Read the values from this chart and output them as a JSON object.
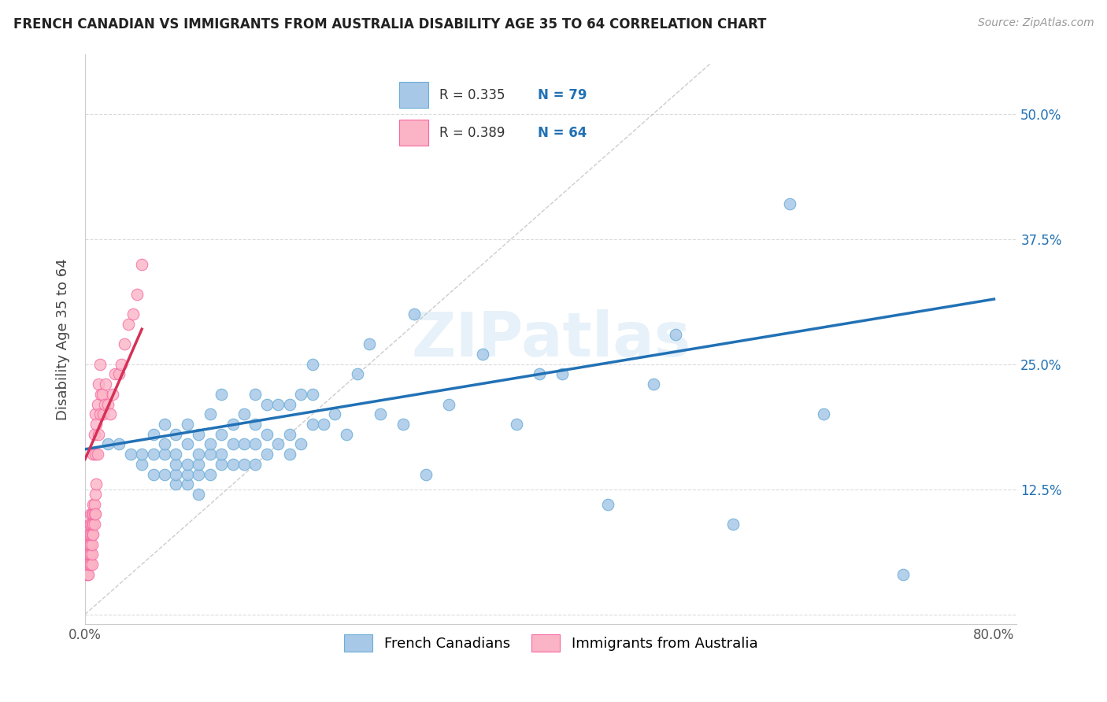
{
  "title": "FRENCH CANADIAN VS IMMIGRANTS FROM AUSTRALIA DISABILITY AGE 35 TO 64 CORRELATION CHART",
  "source": "Source: ZipAtlas.com",
  "ylabel": "Disability Age 35 to 64",
  "xlim": [
    0.0,
    0.82
  ],
  "ylim": [
    -0.01,
    0.56
  ],
  "xticks": [
    0.0,
    0.1,
    0.2,
    0.3,
    0.4,
    0.5,
    0.6,
    0.7,
    0.8
  ],
  "xticklabels": [
    "0.0%",
    "",
    "",
    "",
    "",
    "",
    "",
    "",
    "80.0%"
  ],
  "yticks": [
    0.0,
    0.125,
    0.25,
    0.375,
    0.5
  ],
  "yticklabels_right": [
    "",
    "12.5%",
    "25.0%",
    "37.5%",
    "50.0%"
  ],
  "R_blue": 0.335,
  "N_blue": 79,
  "R_pink": 0.389,
  "N_pink": 64,
  "blue_color": "#a8c8e8",
  "blue_edge_color": "#6baed6",
  "blue_line_color": "#2171b5",
  "pink_color": "#fbb4c6",
  "pink_edge_color": "#f768a1",
  "pink_line_color": "#d63057",
  "watermark": "ZIPatlas",
  "grid_color": "#cccccc",
  "legend_label_blue": "French Canadians",
  "legend_label_pink": "Immigrants from Australia",
  "blue_scatter_x": [
    0.02,
    0.03,
    0.04,
    0.05,
    0.05,
    0.06,
    0.06,
    0.06,
    0.07,
    0.07,
    0.07,
    0.07,
    0.08,
    0.08,
    0.08,
    0.08,
    0.08,
    0.09,
    0.09,
    0.09,
    0.09,
    0.09,
    0.1,
    0.1,
    0.1,
    0.1,
    0.1,
    0.11,
    0.11,
    0.11,
    0.11,
    0.12,
    0.12,
    0.12,
    0.12,
    0.13,
    0.13,
    0.13,
    0.14,
    0.14,
    0.14,
    0.15,
    0.15,
    0.15,
    0.15,
    0.16,
    0.16,
    0.16,
    0.17,
    0.17,
    0.18,
    0.18,
    0.18,
    0.19,
    0.19,
    0.2,
    0.2,
    0.2,
    0.21,
    0.22,
    0.23,
    0.24,
    0.25,
    0.26,
    0.28,
    0.29,
    0.3,
    0.32,
    0.35,
    0.38,
    0.4,
    0.42,
    0.46,
    0.5,
    0.52,
    0.57,
    0.62,
    0.65,
    0.72
  ],
  "blue_scatter_y": [
    0.17,
    0.17,
    0.16,
    0.15,
    0.16,
    0.14,
    0.16,
    0.18,
    0.14,
    0.16,
    0.17,
    0.19,
    0.13,
    0.14,
    0.15,
    0.16,
    0.18,
    0.13,
    0.14,
    0.15,
    0.17,
    0.19,
    0.12,
    0.14,
    0.15,
    0.16,
    0.18,
    0.14,
    0.16,
    0.17,
    0.2,
    0.15,
    0.16,
    0.18,
    0.22,
    0.15,
    0.17,
    0.19,
    0.15,
    0.17,
    0.2,
    0.15,
    0.17,
    0.19,
    0.22,
    0.16,
    0.18,
    0.21,
    0.17,
    0.21,
    0.16,
    0.18,
    0.21,
    0.17,
    0.22,
    0.19,
    0.22,
    0.25,
    0.19,
    0.2,
    0.18,
    0.24,
    0.27,
    0.2,
    0.19,
    0.3,
    0.14,
    0.21,
    0.26,
    0.19,
    0.24,
    0.24,
    0.11,
    0.23,
    0.28,
    0.09,
    0.41,
    0.2,
    0.04
  ],
  "pink_scatter_x": [
    0.001,
    0.001,
    0.002,
    0.002,
    0.002,
    0.003,
    0.003,
    0.003,
    0.003,
    0.003,
    0.004,
    0.004,
    0.004,
    0.004,
    0.004,
    0.005,
    0.005,
    0.005,
    0.005,
    0.005,
    0.005,
    0.006,
    0.006,
    0.006,
    0.006,
    0.006,
    0.006,
    0.007,
    0.007,
    0.007,
    0.007,
    0.007,
    0.008,
    0.008,
    0.008,
    0.008,
    0.009,
    0.009,
    0.009,
    0.009,
    0.01,
    0.01,
    0.011,
    0.011,
    0.012,
    0.012,
    0.013,
    0.013,
    0.014,
    0.015,
    0.016,
    0.017,
    0.018,
    0.02,
    0.022,
    0.024,
    0.026,
    0.03,
    0.032,
    0.035,
    0.038,
    0.042,
    0.046,
    0.05
  ],
  "pink_scatter_y": [
    0.04,
    0.05,
    0.04,
    0.05,
    0.06,
    0.04,
    0.05,
    0.06,
    0.07,
    0.08,
    0.05,
    0.06,
    0.07,
    0.08,
    0.09,
    0.05,
    0.06,
    0.07,
    0.08,
    0.09,
    0.1,
    0.05,
    0.06,
    0.07,
    0.08,
    0.09,
    0.1,
    0.08,
    0.09,
    0.1,
    0.11,
    0.16,
    0.09,
    0.1,
    0.11,
    0.18,
    0.1,
    0.12,
    0.16,
    0.2,
    0.13,
    0.19,
    0.16,
    0.21,
    0.18,
    0.23,
    0.2,
    0.25,
    0.22,
    0.22,
    0.2,
    0.21,
    0.23,
    0.21,
    0.2,
    0.22,
    0.24,
    0.24,
    0.25,
    0.27,
    0.29,
    0.3,
    0.32,
    0.35
  ]
}
